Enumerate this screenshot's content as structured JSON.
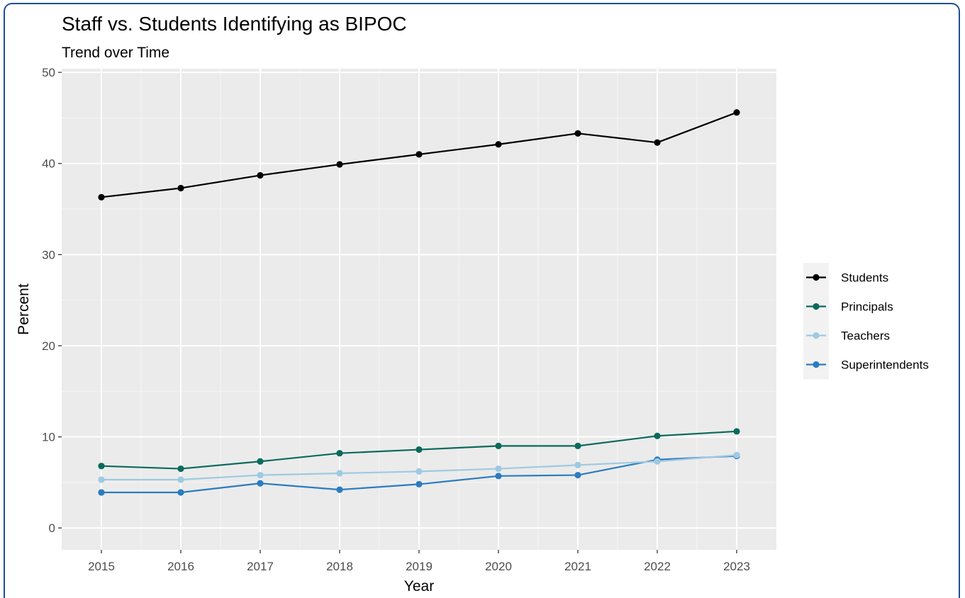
{
  "chart_data": {
    "type": "line",
    "title": "Staff vs. Students Identifying as BIPOC",
    "subtitle": "Trend over Time",
    "xlabel": "Year",
    "ylabel": "Percent",
    "x": [
      2015,
      2016,
      2017,
      2018,
      2019,
      2020,
      2021,
      2022,
      2023
    ],
    "x_tick_labels": [
      "2015",
      "2016",
      "2017",
      "2018",
      "2019",
      "2020",
      "2021",
      "2022",
      "2023"
    ],
    "ylim": [
      -2.4,
      50.4
    ],
    "y_ticks": [
      0,
      10,
      20,
      30,
      40,
      50
    ],
    "y_tick_labels": [
      "0",
      "10",
      "20",
      "30",
      "40",
      "50"
    ],
    "grid": true,
    "panel_background": "#ebebeb",
    "legend_position": "right",
    "series": [
      {
        "name": "Students",
        "color": "#000000",
        "values": [
          36.3,
          37.3,
          38.7,
          39.9,
          41.0,
          42.1,
          43.3,
          42.3,
          45.6
        ]
      },
      {
        "name": "Principals",
        "color": "#0b6a5c",
        "values": [
          6.8,
          6.5,
          7.3,
          8.2,
          8.6,
          9.0,
          9.0,
          10.1,
          10.6
        ]
      },
      {
        "name": "Teachers",
        "color": "#9ecae1",
        "values": [
          5.3,
          5.3,
          5.8,
          6.0,
          6.2,
          6.5,
          6.9,
          7.3,
          8.0
        ]
      },
      {
        "name": "Superintendents",
        "color": "#2b7cbf",
        "values": [
          3.9,
          3.9,
          4.9,
          4.2,
          4.8,
          5.7,
          5.8,
          7.5,
          7.9
        ]
      }
    ]
  }
}
